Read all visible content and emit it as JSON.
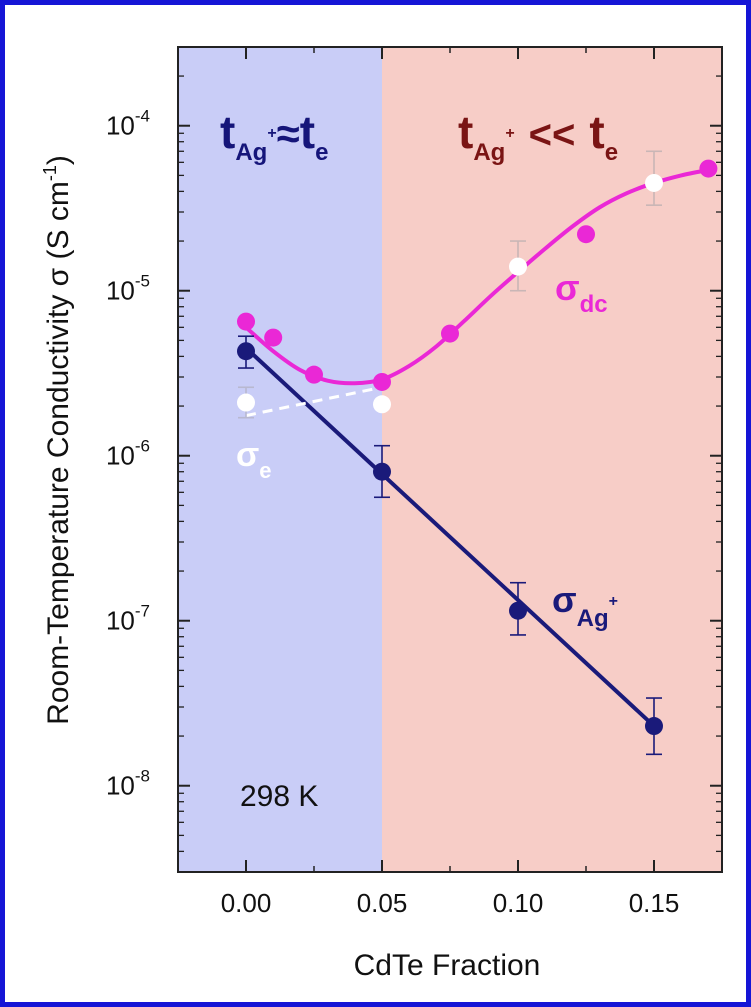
{
  "chart_data": {
    "type": "scatter",
    "xlabel": "CdTe Fraction",
    "ylabel": "Room-Temperature Conductivity σ (S cm",
    "ylabel_superscript": "-1",
    "ylabel_tail": ")",
    "xlim": [
      -0.025,
      0.175
    ],
    "ylim": [
      3e-09,
      0.0003
    ],
    "yscale": "log",
    "x_ticks": [
      0.0,
      0.05,
      0.1,
      0.15
    ],
    "x_tick_labels": [
      "0.00",
      "0.05",
      "0.10",
      "0.15"
    ],
    "y_ticks": [
      1e-08,
      1e-07,
      1e-06,
      1e-05,
      0.0001
    ],
    "y_tick_labels": [
      {
        "base": "10",
        "exp": "-8"
      },
      {
        "base": "10",
        "exp": "-7"
      },
      {
        "base": "10",
        "exp": "-6"
      },
      {
        "base": "10",
        "exp": "-5"
      },
      {
        "base": "10",
        "exp": "-4"
      }
    ],
    "regions": [
      {
        "x0": -0.025,
        "x1": 0.05,
        "color": "#c9cdf7"
      },
      {
        "x0": 0.05,
        "x1": 0.175,
        "color": "#f7cdc7"
      }
    ],
    "series": [
      {
        "key": "dc",
        "label_main": "σ",
        "label_sub": "dc",
        "color": "#ea28d6",
        "points": [
          {
            "x": 0.0,
            "y": 6.5e-06
          },
          {
            "x": 0.01,
            "y": 5.2e-06
          },
          {
            "x": 0.025,
            "y": 3.1e-06
          },
          {
            "x": 0.05,
            "y": 2.8e-06
          },
          {
            "x": 0.075,
            "y": 5.5e-06
          },
          {
            "x": 0.1,
            "y": 1.4e-05,
            "hollow": true,
            "err": [
              1e-05,
              2e-05
            ]
          },
          {
            "x": 0.125,
            "y": 2.2e-05
          },
          {
            "x": 0.15,
            "y": 4.5e-05,
            "hollow": true,
            "err": [
              3.3e-05,
              7e-05
            ]
          },
          {
            "x": 0.17,
            "y": 5.5e-05
          }
        ],
        "fit": [
          {
            "x": 0.0,
            "y": 6e-06
          },
          {
            "x": 0.01,
            "y": 4.3e-06
          },
          {
            "x": 0.02,
            "y": 3.3e-06
          },
          {
            "x": 0.03,
            "y": 2.85e-06
          },
          {
            "x": 0.04,
            "y": 2.75e-06
          },
          {
            "x": 0.05,
            "y": 2.9e-06
          },
          {
            "x": 0.06,
            "y": 3.5e-06
          },
          {
            "x": 0.07,
            "y": 4.6e-06
          },
          {
            "x": 0.08,
            "y": 6.5e-06
          },
          {
            "x": 0.09,
            "y": 9.3e-06
          },
          {
            "x": 0.1,
            "y": 1.3e-05
          },
          {
            "x": 0.11,
            "y": 1.8e-05
          },
          {
            "x": 0.12,
            "y": 2.45e-05
          },
          {
            "x": 0.13,
            "y": 3.2e-05
          },
          {
            "x": 0.14,
            "y": 3.9e-05
          },
          {
            "x": 0.15,
            "y": 4.5e-05
          },
          {
            "x": 0.16,
            "y": 5e-05
          },
          {
            "x": 0.17,
            "y": 5.4e-05
          }
        ]
      },
      {
        "key": "ag",
        "label_main": "σ",
        "label_sub": "Ag",
        "label_sup": "+",
        "color": "#1a1a7a",
        "points": [
          {
            "x": 0.0,
            "y": 4.3e-06,
            "err": [
              3.4e-06,
              5.3e-06
            ]
          },
          {
            "x": 0.05,
            "y": 8e-07,
            "err": [
              5.6e-07,
              1.15e-06
            ]
          },
          {
            "x": 0.1,
            "y": 1.15e-07,
            "err": [
              8.2e-08,
              1.7e-07
            ]
          },
          {
            "x": 0.15,
            "y": 2.3e-08,
            "err": [
              1.55e-08,
              3.4e-08
            ]
          }
        ],
        "fit": [
          {
            "x": 0.0,
            "y": 4.5e-06
          },
          {
            "x": 0.15,
            "y": 2.3e-08
          }
        ]
      },
      {
        "key": "e",
        "label_main": "σ",
        "label_sub": "e",
        "color": "#ffffff",
        "points": [
          {
            "x": 0.0,
            "y": 2.1e-06,
            "err": [
              1.7e-06,
              2.6e-06
            ]
          },
          {
            "x": 0.05,
            "y": 2.05e-06
          }
        ],
        "fit": [
          {
            "x": 0.0,
            "y": 1.75e-06
          },
          {
            "x": 0.05,
            "y": 2.6e-06
          }
        ]
      }
    ],
    "annotations": {
      "left": {
        "main": "t",
        "sub": "Ag",
        "sup": "+",
        "rel": "≈",
        "main2": "t",
        "sub2": "e",
        "color": "#15157a"
      },
      "right": {
        "main": "t",
        "sub": "Ag",
        "sup": "+",
        "rel": "<<",
        "main2": "t",
        "sub2": "e",
        "color": "#7a1414"
      },
      "temperature": "298 K"
    }
  }
}
